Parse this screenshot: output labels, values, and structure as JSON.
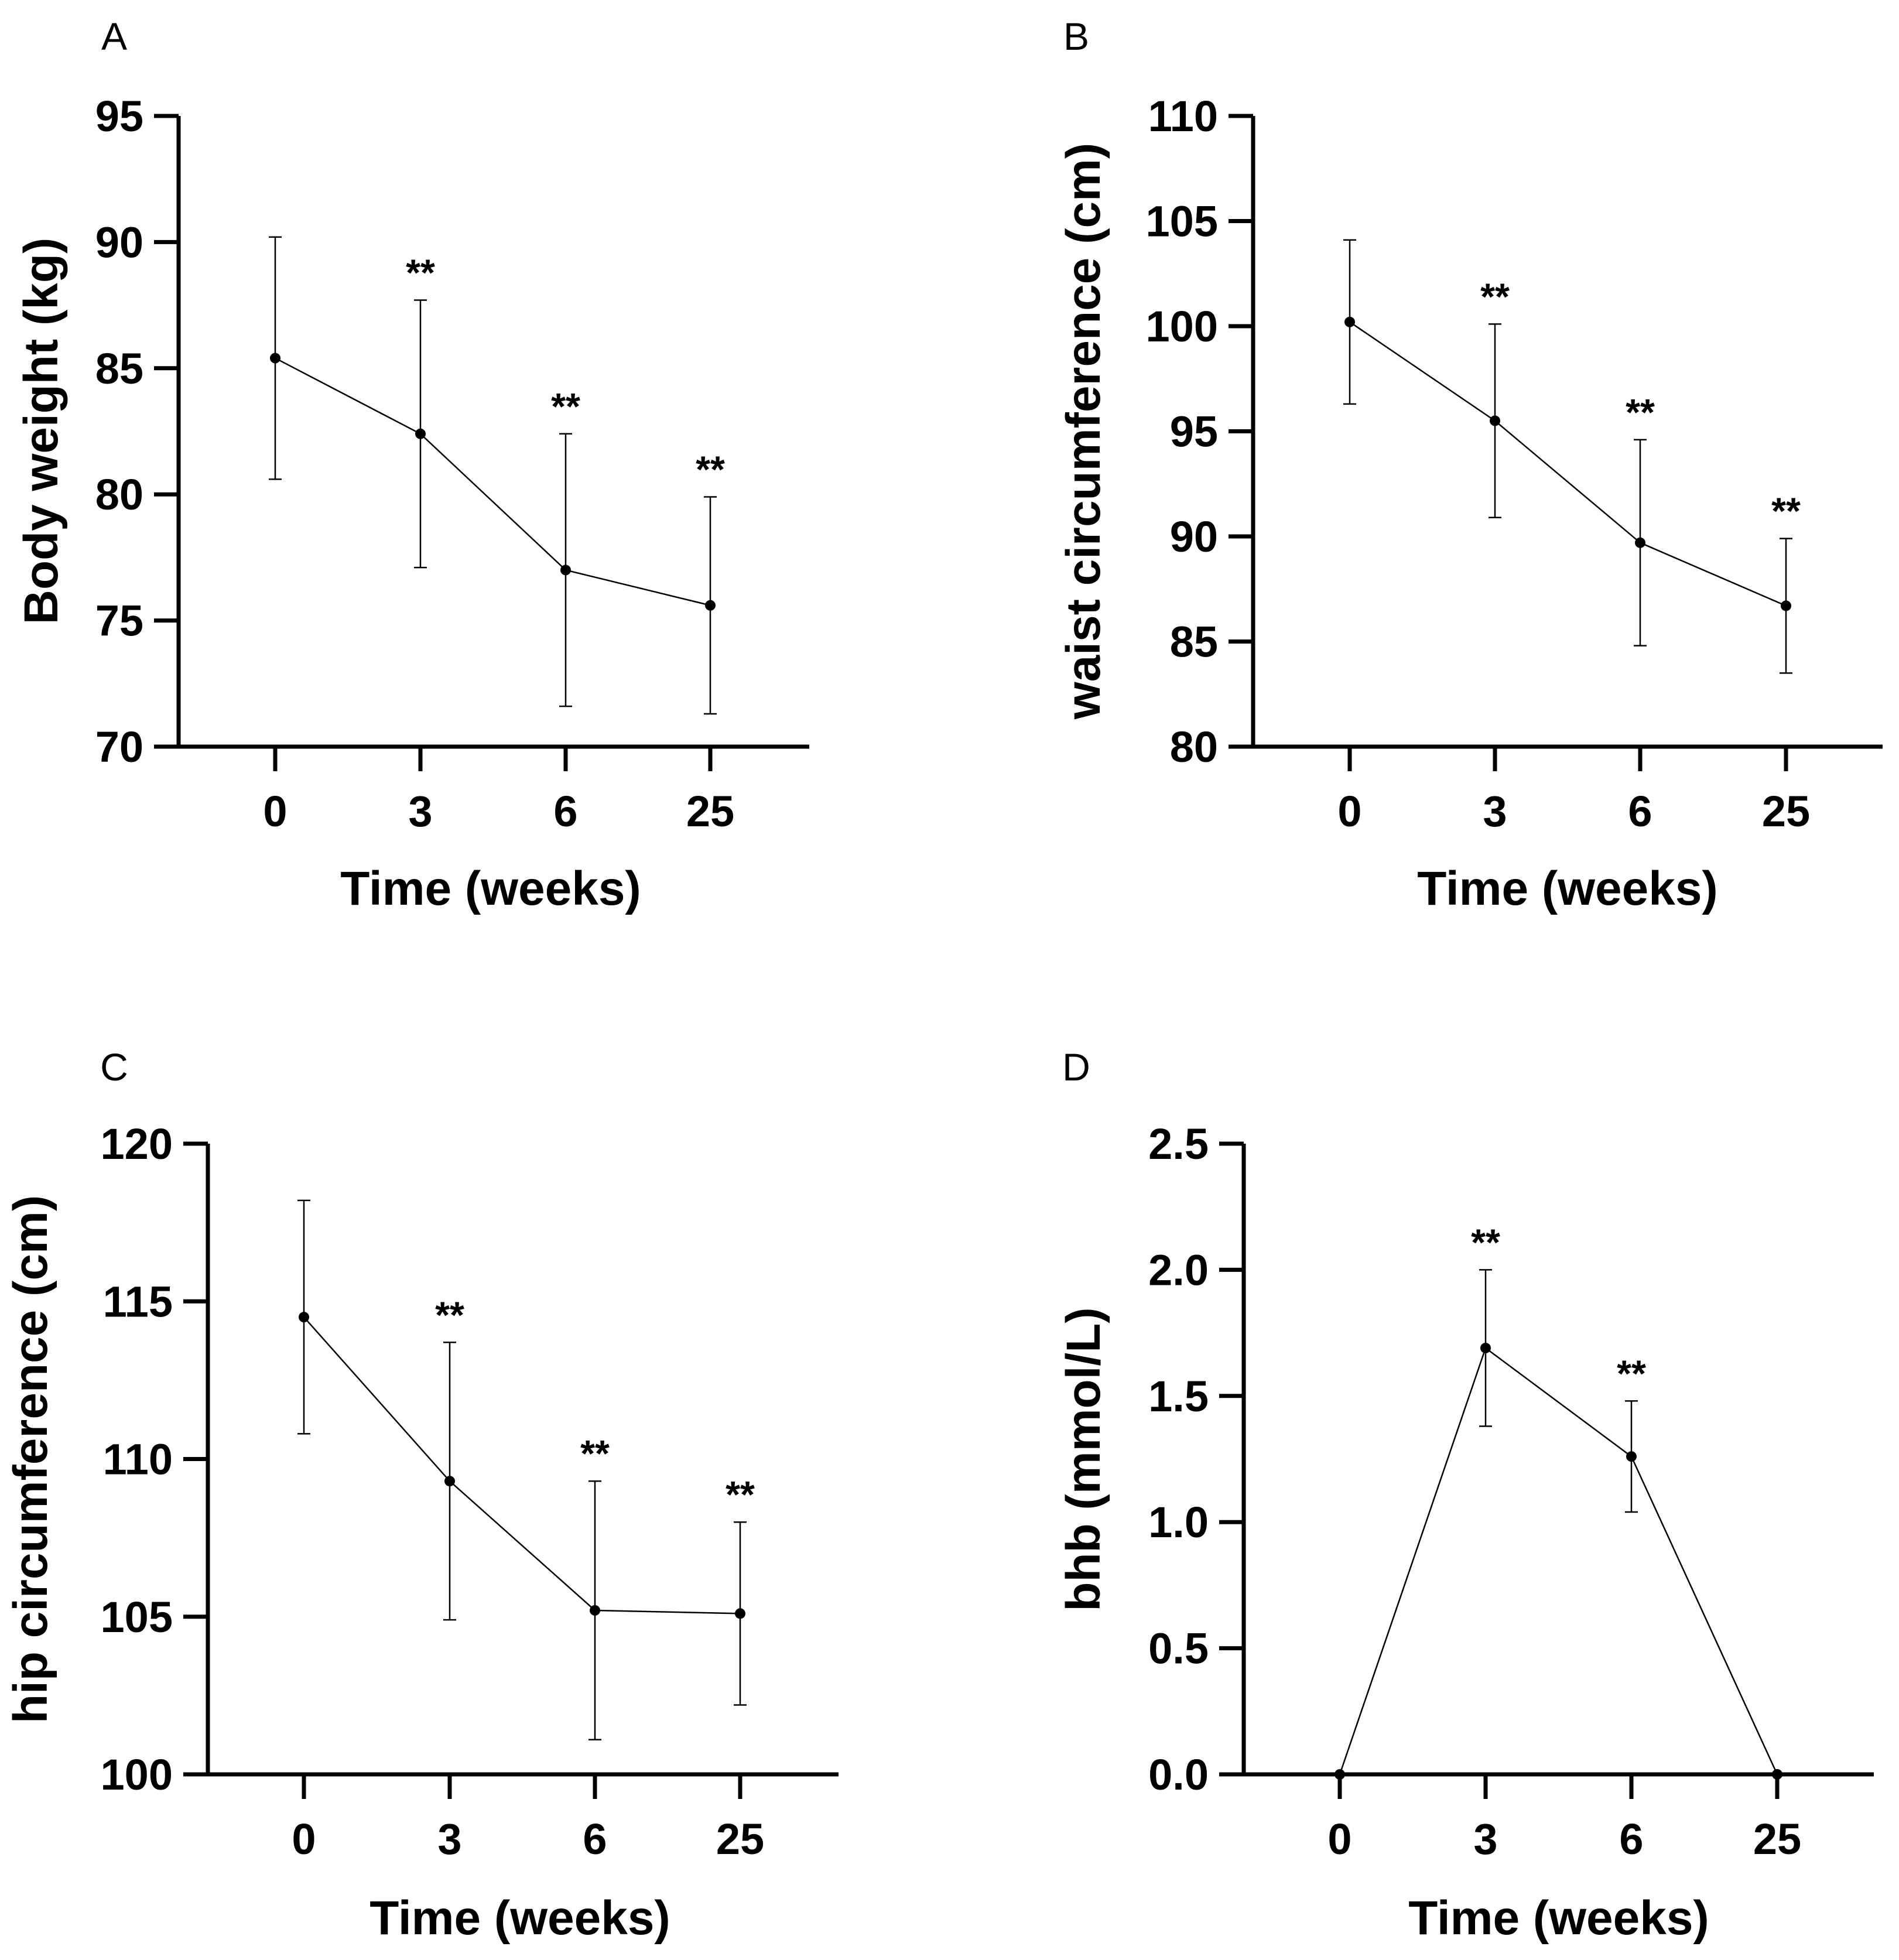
{
  "chart_data": [
    {
      "panel": "A",
      "type": "line",
      "xlabel": "Time (weeks)",
      "ylabel": "Body weight (kg)",
      "categories": [
        "0",
        "3",
        "6",
        "25"
      ],
      "values": [
        85.4,
        82.4,
        77.0,
        75.6
      ],
      "errors": [
        4.8,
        5.3,
        5.4,
        4.3
      ],
      "significance": [
        "",
        "**",
        "**",
        "**"
      ],
      "ylim": [
        70,
        95
      ],
      "yticks": [
        "70",
        "75",
        "80",
        "85",
        "90",
        "95"
      ]
    },
    {
      "panel": "B",
      "type": "line",
      "xlabel": "Time (weeks)",
      "ylabel": "waist circumference (cm)",
      "categories": [
        "0",
        "3",
        "6",
        "25"
      ],
      "values": [
        100.2,
        95.5,
        89.7,
        86.7
      ],
      "errors": [
        3.9,
        4.6,
        4.9,
        3.2
      ],
      "significance": [
        "",
        "**",
        "**",
        "**"
      ],
      "ylim": [
        80,
        110
      ],
      "yticks": [
        "80",
        "85",
        "90",
        "95",
        "100",
        "105",
        "110"
      ]
    },
    {
      "panel": "C",
      "type": "line",
      "xlabel": "Time (weeks)",
      "ylabel": "hip circumference (cm)",
      "categories": [
        "0",
        "3",
        "6",
        "25"
      ],
      "values": [
        114.5,
        109.3,
        105.2,
        105.1
      ],
      "errors": [
        3.7,
        4.4,
        4.1,
        2.9
      ],
      "significance": [
        "",
        "**",
        "**",
        "**"
      ],
      "ylim": [
        100,
        120
      ],
      "yticks": [
        "100",
        "105",
        "110",
        "115",
        "120"
      ]
    },
    {
      "panel": "D",
      "type": "line",
      "xlabel": "Time (weeks)",
      "ylabel": "bhb (mmol/L)",
      "categories": [
        "0",
        "3",
        "6",
        "25"
      ],
      "values": [
        0.0,
        1.69,
        1.26,
        0.0
      ],
      "errors": [
        0,
        0.31,
        0.22,
        0
      ],
      "significance": [
        "",
        "**",
        "**",
        ""
      ],
      "ylim": [
        0,
        2.5
      ],
      "yticks": [
        "0.0",
        "0.5",
        "1.0",
        "1.5",
        "2.0",
        "2.5"
      ]
    }
  ]
}
